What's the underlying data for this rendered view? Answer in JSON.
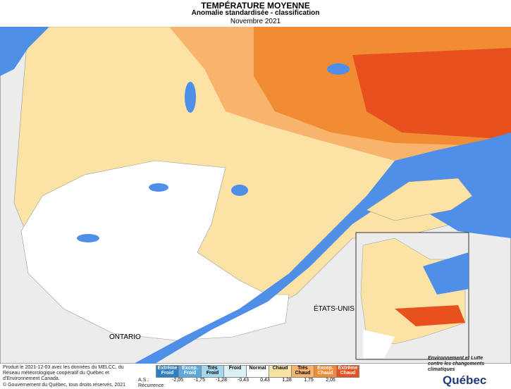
{
  "header": {
    "title": "TEMPÉRATURE MOYENNE",
    "subtitle": "Anomalie standardisée - classification",
    "period": "Novembre 2021"
  },
  "map_labels": {
    "ontario": "ONTARIO",
    "usa": "ÉTATS-UNIS"
  },
  "legend": {
    "classes": [
      {
        "label": "Extrême Froid",
        "color": "#2c7fc6"
      },
      {
        "label": "Excep. Froid",
        "color": "#5ea7dc"
      },
      {
        "label": "Très Froid",
        "color": "#a5d7ee"
      },
      {
        "label": "Froid",
        "color": "#daf1f8"
      },
      {
        "label": "Normal",
        "color": "#ffffff"
      },
      {
        "label": "Chaud",
        "color": "#fbe3a5"
      },
      {
        "label": "Très Chaud",
        "color": "#f8b46c"
      },
      {
        "label": "Excep. Chaud",
        "color": "#f28c34"
      },
      {
        "label": "Extrême Chaud",
        "color": "#e8511d"
      }
    ],
    "as_label": "A.S.:",
    "thresholds": [
      "-2,05",
      "-1,75",
      "-1,28",
      "-0,43",
      "0,43",
      "1,28",
      "1,75",
      "2,05"
    ],
    "recurrence_label": "Récurrence:"
  },
  "footer": {
    "credit": "Produit le 2021-12-03 avec les données du MELCC, du Réseau météorologique coopératif du Québec et d'Environnement Canada.",
    "copyright": "© Gouvernement du Québec, tous droits réservés, 2021",
    "ministry": "Environnement et Lutte contre les changements climatiques",
    "brand": "Québec"
  }
}
